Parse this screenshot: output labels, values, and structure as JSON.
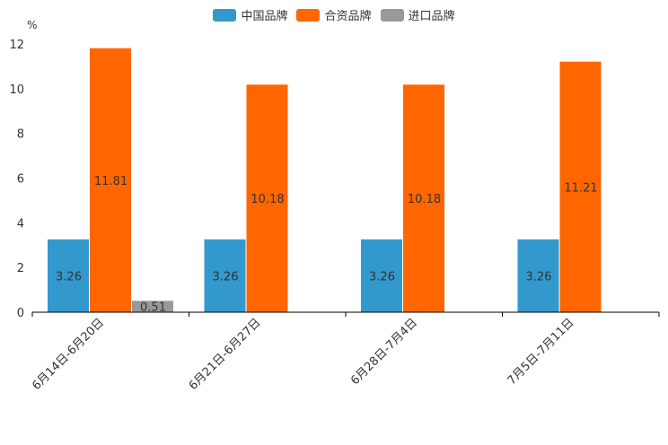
{
  "chart_data": {
    "type": "bar",
    "unit_label": "%",
    "categories": [
      "6月14日-6月20日",
      "6月21日-6月27日",
      "6月28日-7月4日",
      "7月5日-7月11日"
    ],
    "series": [
      {
        "name": "中国品牌",
        "color": "#3398CC",
        "values": [
          3.26,
          3.26,
          3.26,
          3.26
        ]
      },
      {
        "name": "合资品牌",
        "color": "#FF6600",
        "values": [
          11.81,
          10.18,
          10.18,
          11.21
        ]
      },
      {
        "name": "进口品牌",
        "color": "#999999",
        "values": [
          0.51,
          null,
          null,
          null
        ]
      }
    ],
    "value_labels": [
      [
        "3.26",
        "3.26",
        "3.26",
        "3.26"
      ],
      [
        "11.81",
        "10.18",
        "10.18",
        "11.21"
      ],
      [
        "0.51",
        null,
        null,
        null
      ]
    ],
    "ylim": [
      0,
      12
    ],
    "yticks": [
      0,
      2,
      4,
      6,
      8,
      10,
      12
    ],
    "legend_position": "top-center",
    "grid": false
  }
}
